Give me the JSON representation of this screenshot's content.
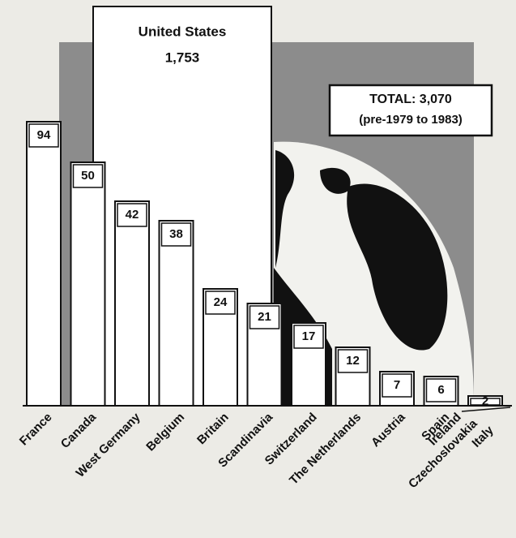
{
  "chart_data": {
    "type": "bar",
    "categories": [
      "France",
      "Canada",
      "West Germany",
      "Belgium",
      "Britain",
      "Scandinavia",
      "Switzerland",
      "The Netherlands",
      "Austria",
      "Spain",
      [
        "Ireland",
        "Czechoslovakia",
        "Italy"
      ]
    ],
    "values": [
      94,
      50,
      42,
      38,
      24,
      21,
      17,
      12,
      7,
      6,
      2
    ],
    "highlight": {
      "name": "United States",
      "value": 1753,
      "value_label": "1,753"
    },
    "total_box": {
      "title": "TOTAL: 3,070",
      "subtitle": "(pre-1979 to 1983)"
    },
    "color": "#ffffff",
    "background": "#8c8c8c"
  }
}
